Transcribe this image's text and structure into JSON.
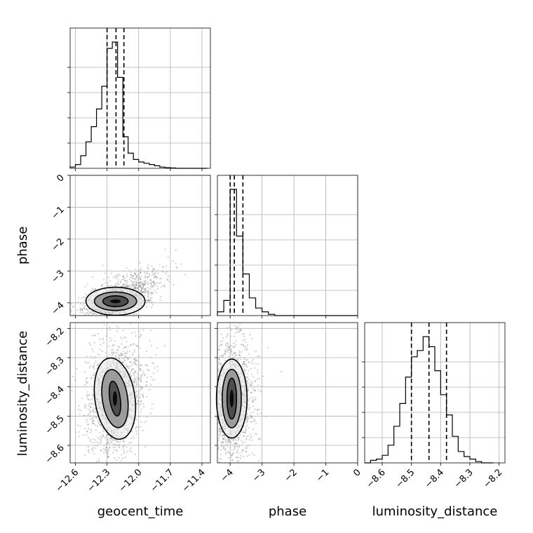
{
  "chart_data": {
    "type": "corner",
    "parameters": [
      "geocent_time",
      "phase",
      "luminosity_distance"
    ],
    "ranges": {
      "geocent_time": [
        -12.65,
        -11.32
      ],
      "phase": [
        -4.4,
        0
      ],
      "luminosity_distance": [
        -8.66,
        -8.18
      ]
    },
    "ticks": {
      "geocent_time": [
        -12.6,
        -12.3,
        -12.0,
        -11.7,
        -11.4
      ],
      "phase": [
        -4,
        -3,
        -2,
        -1,
        0
      ],
      "luminosity_distance": [
        -8.6,
        -8.5,
        -8.4,
        -8.3,
        -8.2
      ]
    },
    "tick_labels": {
      "geocent_time": [
        "−12.6",
        "−12.3",
        "−12.0",
        "−11.7",
        "−11.4"
      ],
      "phase": [
        "−4",
        "−3",
        "−2",
        "−1",
        "0"
      ],
      "luminosity_distance": [
        "−8.6",
        "−8.5",
        "−8.4",
        "−8.3",
        "−8.2"
      ]
    },
    "histograms": {
      "geocent_time": {
        "edges": [
          -12.65,
          -12.6,
          -12.55,
          -12.5,
          -12.45,
          -12.4,
          -12.35,
          -12.3,
          -12.25,
          -12.2,
          -12.15,
          -12.1,
          -12.05,
          -12.0,
          -11.95,
          -11.9,
          -11.85,
          -11.8,
          -11.75,
          -11.7,
          -11.65,
          -11.6,
          -11.55,
          -11.5,
          -11.45,
          -11.4,
          -11.35
        ],
        "counts": [
          0.01,
          0.03,
          0.1,
          0.21,
          0.33,
          0.47,
          0.65,
          0.95,
          1.0,
          0.72,
          0.25,
          0.12,
          0.07,
          0.05,
          0.04,
          0.03,
          0.02,
          0.01,
          0.005,
          0.003,
          0.0,
          0.0,
          0.0,
          0.0,
          0.0,
          0.0
        ],
        "quantiles": [
          -12.3,
          -12.215,
          -12.14
        ]
      },
      "phase": {
        "edges": [
          -4.4,
          -4.2,
          -4.0,
          -3.8,
          -3.6,
          -3.4,
          -3.2,
          -3.0,
          -2.8,
          -2.6,
          -2.4,
          -2.2,
          -2.0,
          -1.8,
          -1.6,
          -1.4,
          -1.2,
          -1.0,
          -0.8,
          -0.6,
          -0.4,
          -0.2,
          0.0
        ],
        "counts": [
          0.03,
          0.12,
          1.0,
          0.63,
          0.33,
          0.14,
          0.06,
          0.03,
          0.01,
          0.0,
          0.0,
          0.0,
          0.0,
          0.0,
          0.0,
          0.0,
          0.0,
          0.0,
          0.0,
          0.0,
          0.0,
          0.0
        ],
        "quantiles": [
          -4.0,
          -3.87,
          -3.6
        ]
      },
      "luminosity_distance": {
        "edges": [
          -8.66,
          -8.64,
          -8.62,
          -8.6,
          -8.58,
          -8.56,
          -8.54,
          -8.52,
          -8.5,
          -8.48,
          -8.46,
          -8.44,
          -8.42,
          -8.4,
          -8.38,
          -8.36,
          -8.34,
          -8.32,
          -8.3,
          -8.28,
          -8.26,
          -8.24,
          -8.22
        ],
        "counts": [
          0.0,
          0.02,
          0.03,
          0.06,
          0.14,
          0.29,
          0.47,
          0.68,
          0.84,
          0.89,
          1.0,
          0.92,
          0.73,
          0.54,
          0.38,
          0.21,
          0.09,
          0.05,
          0.03,
          0.01,
          0.0,
          0.0
        ],
        "quantiles": [
          -8.5,
          -8.44,
          -8.38
        ]
      }
    },
    "contours": {
      "phase_vs_geocent_time": {
        "center": [
          -12.22,
          -3.95
        ],
        "levels": [
          {
            "rx": 0.05,
            "ry": 0.06,
            "angle": 0
          },
          {
            "rx": 0.12,
            "ry": 0.17,
            "angle": 0
          },
          {
            "rx": 0.2,
            "ry": 0.29,
            "angle": 0
          },
          {
            "rx": 0.28,
            "ry": 0.44,
            "angle": 0
          }
        ]
      },
      "luminosity_distance_vs_geocent_time": {
        "center": [
          -12.225,
          -8.44
        ],
        "levels": [
          {
            "rx": 0.02,
            "ry": 0.025,
            "angle": 0
          },
          {
            "rx": 0.05,
            "ry": 0.06,
            "angle": -8
          },
          {
            "rx": 0.12,
            "ry": 0.1,
            "angle": -8
          },
          {
            "rx": 0.19,
            "ry": 0.14,
            "angle": -8
          }
        ]
      },
      "luminosity_distance_vs_phase": {
        "center": [
          -3.95,
          -8.44
        ],
        "levels": [
          {
            "rx": 0.06,
            "ry": 0.03,
            "angle": 0
          },
          {
            "rx": 0.15,
            "ry": 0.07,
            "angle": 0
          },
          {
            "rx": 0.3,
            "ry": 0.1,
            "angle": 0
          },
          {
            "rx": 0.48,
            "ry": 0.135,
            "angle": 0
          }
        ]
      }
    }
  }
}
